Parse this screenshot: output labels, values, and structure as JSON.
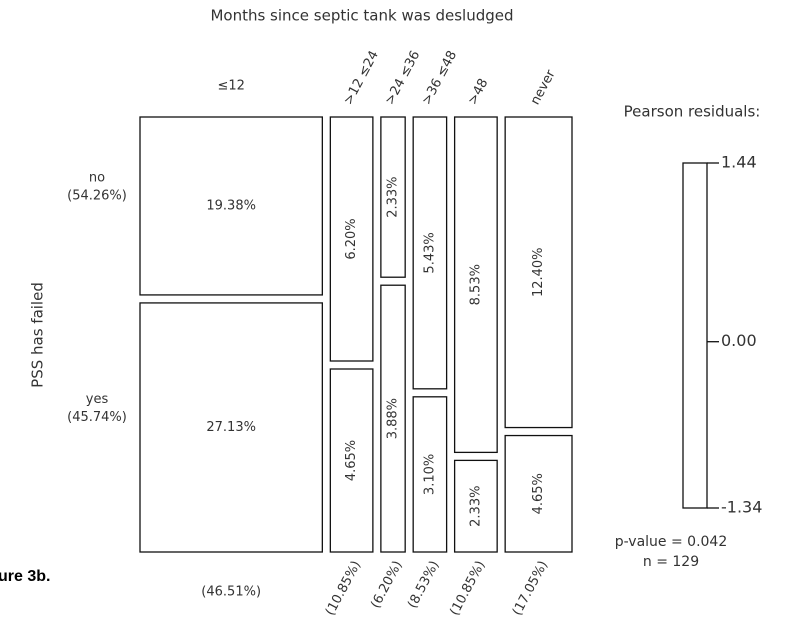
{
  "chart_data": {
    "type": "mosaic",
    "title": "Months since septic tank was desludged",
    "y_label": "PSS has failed",
    "figure_label": "ure 3b.",
    "categories": [
      "≤12",
      ">12 ≤24",
      ">24 ≤36",
      ">36 ≤48",
      ">48",
      "never"
    ],
    "column_shares": [
      46.51,
      10.85,
      6.2,
      8.53,
      10.85,
      17.05
    ],
    "column_share_labels": [
      "(46.51%)",
      "(10.85%)",
      "(6.20%)",
      "(8.53%)",
      "(10.85%)",
      "(17.05%)"
    ],
    "series": [
      {
        "name": "no",
        "share_label": "(54.26%)",
        "values": [
          19.38,
          6.2,
          2.33,
          5.43,
          8.53,
          12.4
        ],
        "value_labels": [
          "19.38%",
          "6.20%",
          "2.33%",
          "5.43%",
          "8.53%",
          "12.40%"
        ]
      },
      {
        "name": "yes",
        "share_label": "(45.74%)",
        "values": [
          27.13,
          4.65,
          3.88,
          3.1,
          2.33,
          4.65
        ],
        "value_labels": [
          "27.13%",
          "4.65%",
          "3.88%",
          "3.10%",
          "2.33%",
          "4.65%"
        ]
      }
    ],
    "legend_title": "Pearson residuals:",
    "ylim": [
      -1.34,
      1.44
    ],
    "yticks": [
      1.44,
      {
        "value": 0,
        "label": "0.00"
      },
      -1.34
    ],
    "p_value_text": "p-value = 0.042",
    "n_text": "n = 129"
  }
}
